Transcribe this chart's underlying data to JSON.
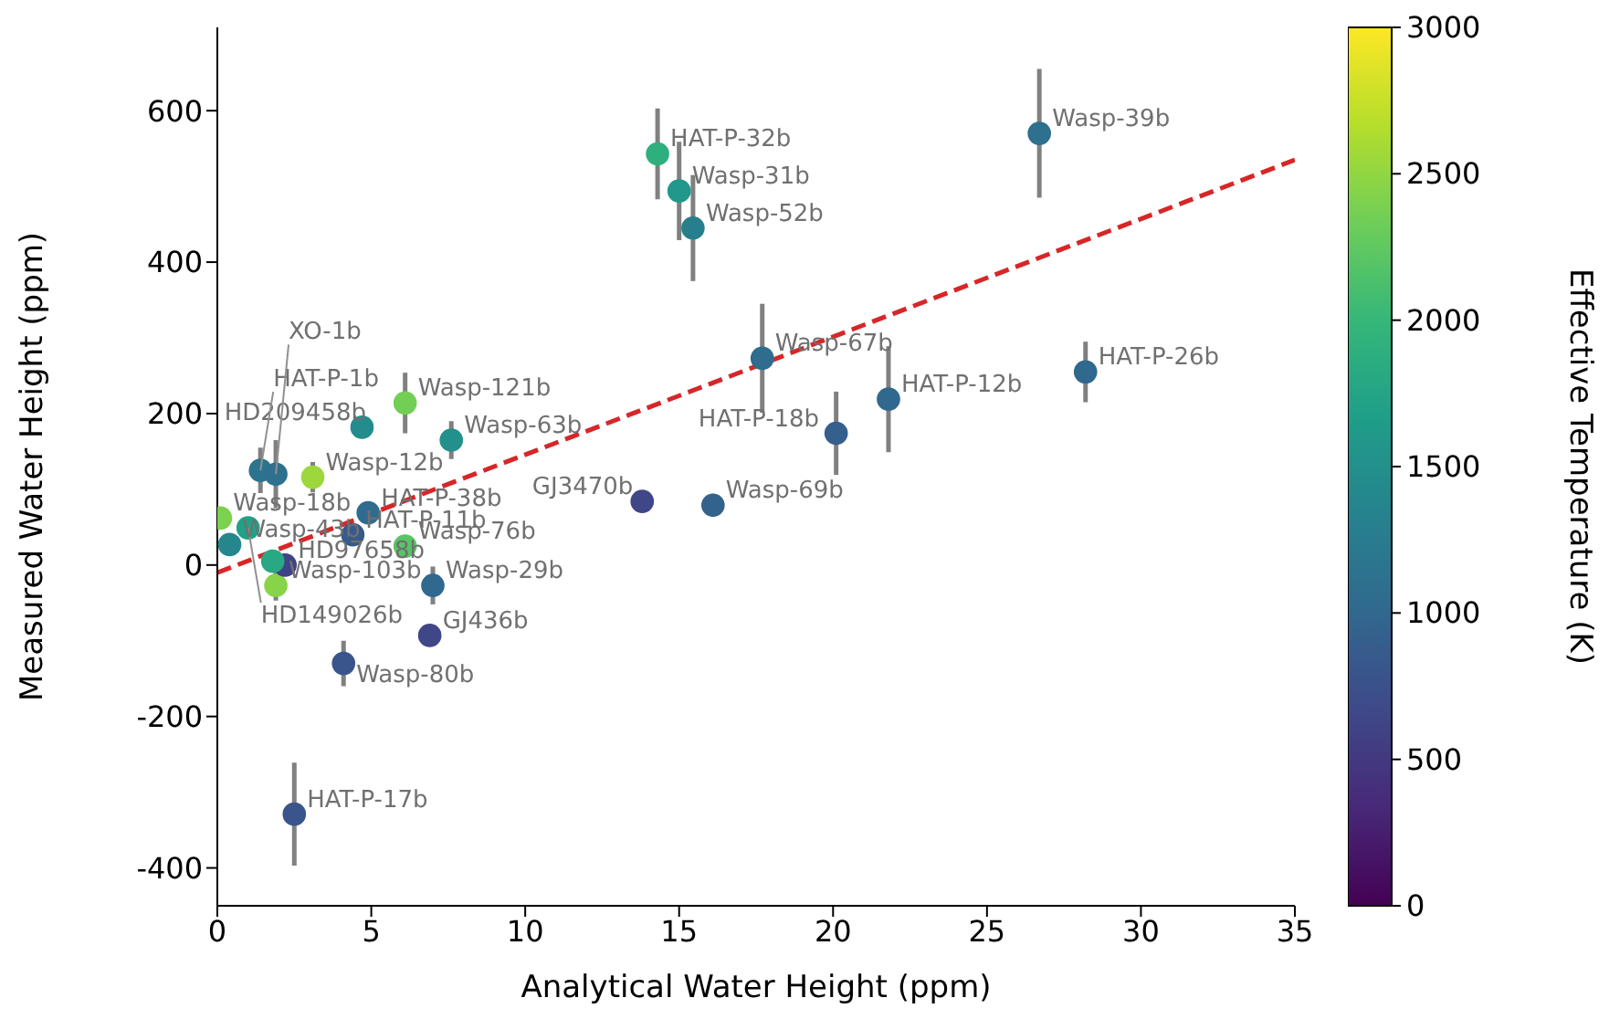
{
  "chart_data": {
    "type": "scatter",
    "xlabel": "Analytical Water Height (ppm)",
    "ylabel": "Measured Water Height (ppm)",
    "clabel": "Effective Temperature (K)",
    "xlim": [
      0,
      35
    ],
    "ylim": [
      -450,
      710
    ],
    "xticks": [
      0,
      5,
      10,
      15,
      20,
      25,
      30,
      35
    ],
    "yticks": [
      -400,
      -200,
      0,
      200,
      400,
      600
    ],
    "clim": [
      0,
      3000
    ],
    "cticks": [
      0,
      500,
      1000,
      1500,
      2000,
      2500,
      3000
    ],
    "grid": false,
    "marker": "circle",
    "series": [
      {
        "x": [
          26.7,
          14.3,
          15.0,
          15.45,
          17.7,
          28.2,
          21.8,
          20.1,
          13.8,
          16.1,
          2.5,
          4.1,
          6.9,
          7.0,
          6.1,
          4.7,
          7.6,
          1.4,
          1.9,
          3.1,
          0.1,
          1.0,
          0.4,
          4.9,
          4.4,
          6.1,
          1.9,
          2.2,
          1.8
        ],
        "values": [
          570,
          543,
          494,
          445,
          273,
          255,
          219,
          174,
          84,
          79,
          -329,
          -130,
          -93,
          -27,
          214,
          182,
          165,
          125,
          120,
          116,
          62,
          49,
          27,
          69,
          40,
          25,
          -27,
          0,
          5
        ],
        "errors": [
          85,
          60,
          65,
          70,
          72,
          40,
          70,
          55,
          null,
          null,
          68,
          30,
          null,
          25,
          40,
          null,
          25,
          30,
          45,
          20,
          null,
          null,
          null,
          null,
          null,
          null,
          20,
          null,
          null
        ],
        "colors": [
          "#2e708e",
          "#2eb07e",
          "#20988a",
          "#277f8e",
          "#2f6c8e",
          "#31688e",
          "#31688e",
          "#355f8d",
          "#3f4788",
          "#33638d",
          "#39558b",
          "#39558b",
          "#3f4788",
          "#31688e",
          "#72cf56",
          "#248c8c",
          "#23908c",
          "#2c748e",
          "#2e708e",
          "#9cd83c",
          "#7cd14f",
          "#21a187",
          "#25878d",
          "#2f6c8e",
          "#375a8c",
          "#57c465",
          "#87d448",
          "#404386",
          "#28a883"
        ],
        "cvalues": [
          1100,
          1900,
          1600,
          1300,
          1050,
          1000,
          1000,
          900,
          650,
          950,
          800,
          800,
          650,
          1000,
          2350,
          1450,
          1500,
          1150,
          1100,
          2550,
          2400,
          1700,
          1400,
          1050,
          850,
          2200,
          2450,
          600,
          1800
        ]
      },
      {
        "type": "line",
        "x": [
          0,
          35
        ],
        "values": [
          -10,
          535
        ],
        "color": "#d62728",
        "line_style": "dashed",
        "marker": "none"
      }
    ],
    "annotations": [
      {
        "text": "Wasp-39b",
        "x": 26.7,
        "y": 570
      },
      {
        "text": "HAT-P-32b",
        "x": 14.3,
        "y": 543
      },
      {
        "text": "Wasp-31b",
        "x": 15.0,
        "y": 494
      },
      {
        "text": "Wasp-52b",
        "x": 15.45,
        "y": 445
      },
      {
        "text": "Wasp-67b",
        "x": 17.7,
        "y": 273
      },
      {
        "text": "HAT-P-26b",
        "x": 28.2,
        "y": 255
      },
      {
        "text": "HAT-P-12b",
        "x": 21.8,
        "y": 219
      },
      {
        "text": "HAT-P-18b",
        "x": 20.1,
        "y": 174
      },
      {
        "text": "GJ3470b",
        "x": 13.8,
        "y": 84
      },
      {
        "text": "Wasp-69b",
        "x": 16.1,
        "y": 79
      },
      {
        "text": "HAT-P-17b",
        "x": 2.5,
        "y": -329
      },
      {
        "text": "Wasp-80b",
        "x": 4.1,
        "y": -130
      },
      {
        "text": "GJ436b",
        "x": 6.9,
        "y": -93
      },
      {
        "text": "Wasp-29b",
        "x": 7.0,
        "y": -27
      },
      {
        "text": "Wasp-121b",
        "x": 6.1,
        "y": 214
      },
      {
        "text": "HD209458b",
        "x": 4.7,
        "y": 182
      },
      {
        "text": "Wasp-63b",
        "x": 7.6,
        "y": 165
      },
      {
        "text": "HAT-P-1b",
        "x": 1.4,
        "y": 125
      },
      {
        "text": "XO-1b",
        "x": 1.9,
        "y": 120
      },
      {
        "text": "Wasp-12b",
        "x": 3.1,
        "y": 116
      },
      {
        "text": "Wasp-18b",
        "x": 0.1,
        "y": 62
      },
      {
        "text": "HD149026b",
        "x": 1.0,
        "y": 49
      },
      {
        "text": "Wasp-43b",
        "x": 0.4,
        "y": 27
      },
      {
        "text": "HAT-P-38b",
        "x": 4.9,
        "y": 69
      },
      {
        "text": "HAT-P-11b",
        "x": 4.4,
        "y": 40
      },
      {
        "text": "Wasp-76b",
        "x": 6.1,
        "y": 25
      },
      {
        "text": "Wasp-103b",
        "x": 1.9,
        "y": -27
      },
      {
        "text": "HD97658b",
        "x": 2.2,
        "y": 0
      }
    ]
  }
}
